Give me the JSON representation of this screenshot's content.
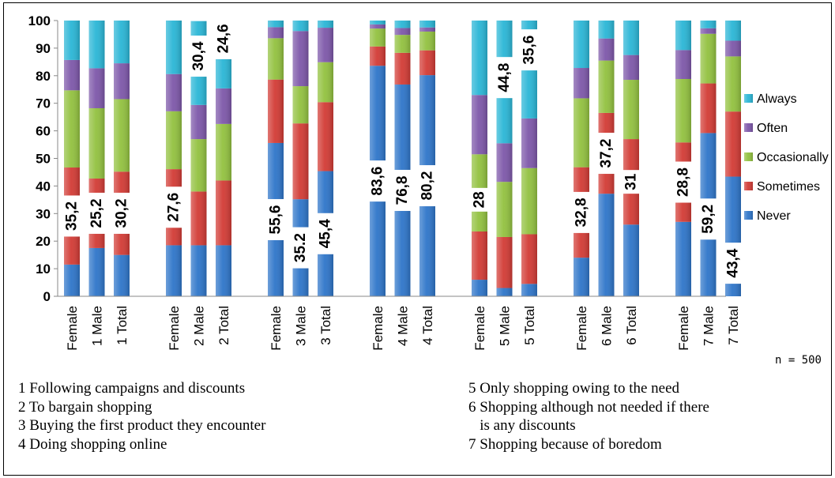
{
  "chart_data": {
    "type": "bar",
    "stacked": true,
    "title": "",
    "xlabel": "",
    "ylabel": "",
    "ylim": [
      0,
      100
    ],
    "yticks": [
      0,
      10,
      20,
      30,
      40,
      50,
      60,
      70,
      80,
      90,
      100
    ],
    "grid": false,
    "legend_position": "right",
    "groups": [
      "1",
      "2",
      "3",
      "4",
      "5",
      "6",
      "7"
    ],
    "categories": [
      "Female",
      "1 Male",
      "1 Total",
      "Female",
      "2 Male",
      "2 Total",
      "Female",
      "3 Male",
      "3 Total",
      "Female",
      "4 Male",
      "4 Total",
      "Female",
      "5 Male",
      "5 Total",
      "Female",
      "6 Male",
      "6 Total",
      "Female",
      "7 Male",
      "7 Total"
    ],
    "series": [
      {
        "name": "Never",
        "color": "#2e75c9",
        "values": [
          11.5,
          17.5,
          15,
          18.5,
          18.5,
          18.5,
          55.6,
          35.2,
          45.4,
          83.6,
          76.8,
          80.2,
          6,
          3,
          4.5,
          14,
          37.2,
          26,
          27,
          59.2,
          43.4
        ]
      },
      {
        "name": "Sometimes",
        "color": "#d23b35",
        "values": [
          35.2,
          25.2,
          30.2,
          27.6,
          19.5,
          23.5,
          23,
          27.5,
          25,
          7,
          11.5,
          9,
          17.5,
          18.5,
          18,
          32.8,
          29.3,
          31,
          28.8,
          18,
          23.6
        ]
      },
      {
        "name": "Occasionally",
        "color": "#92c13f",
        "values": [
          28,
          25.5,
          26.3,
          21,
          19,
          20.5,
          15,
          13.5,
          14.5,
          6.5,
          6.5,
          6.8,
          28,
          20,
          24,
          25,
          19,
          21.5,
          23,
          18,
          20
        ]
      },
      {
        "name": "Often",
        "color": "#7d57a9",
        "values": [
          11,
          14.5,
          13,
          13.5,
          12.4,
          12.9,
          4,
          20,
          12.5,
          1.5,
          2.5,
          1.5,
          21.5,
          14,
          18,
          11,
          8,
          9,
          10.5,
          2,
          5.7
        ]
      },
      {
        "name": "Always",
        "color": "#2ab6d6",
        "values": [
          14.3,
          17.3,
          15.5,
          19.4,
          30.4,
          24.6,
          2.4,
          3.8,
          2.6,
          1.4,
          2.7,
          2.5,
          27,
          44.8,
          35.6,
          17.2,
          6.5,
          12.5,
          10.7,
          2.8,
          7.3
        ]
      }
    ],
    "data_labels": [
      {
        "bar": 0,
        "text": "35,2"
      },
      {
        "bar": 1,
        "text": "25,2"
      },
      {
        "bar": 2,
        "text": "30,2"
      },
      {
        "bar": 3,
        "text": "27,6"
      },
      {
        "bar": 4,
        "text": "30,4"
      },
      {
        "bar": 5,
        "text": "24,6"
      },
      {
        "bar": 6,
        "text": "55,6"
      },
      {
        "bar": 7,
        "text": "35.2"
      },
      {
        "bar": 8,
        "text": "45,4"
      },
      {
        "bar": 9,
        "text": "83,6"
      },
      {
        "bar": 10,
        "text": "76,8"
      },
      {
        "bar": 11,
        "text": "80,2"
      },
      {
        "bar": 12,
        "text": "28"
      },
      {
        "bar": 13,
        "text": "44,8"
      },
      {
        "bar": 14,
        "text": "35,6"
      },
      {
        "bar": 15,
        "text": "32,8"
      },
      {
        "bar": 16,
        "text": "37,2"
      },
      {
        "bar": 17,
        "text": "31"
      },
      {
        "bar": 18,
        "text": "28,8"
      },
      {
        "bar": 19,
        "text": "59,2"
      },
      {
        "bar": 20,
        "text": "43,4"
      }
    ]
  },
  "sample_note": "n = 500",
  "notes": {
    "left": [
      "1 Following campaigns and discounts",
      "2 To bargain shopping",
      "3 Buying the first product they encounter",
      "4 Doing shopping online"
    ],
    "right": [
      "5 Only shopping owing to the need",
      "6 Shopping although not needed if there",
      "   is any discounts",
      "7 Shopping because of boredom"
    ]
  }
}
